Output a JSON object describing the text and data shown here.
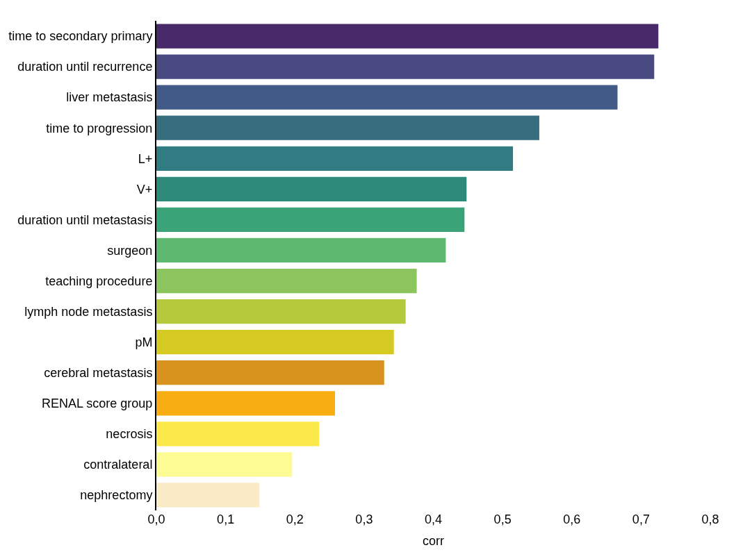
{
  "chart_data": {
    "type": "bar",
    "orientation": "horizontal",
    "xlabel": "corr",
    "categories": [
      "time to secondary primary",
      "duration until recurrence",
      "liver metastasis",
      "time to progression",
      "L+",
      "V+",
      "duration until metastasis",
      "surgeon",
      "teaching procedure",
      "lymph node metastasis",
      "pM",
      "cerebral metastasis",
      "RENAL score group",
      "necrosis",
      "contralateral",
      "nephrectomy"
    ],
    "values": [
      0.725,
      0.719,
      0.666,
      0.553,
      0.515,
      0.448,
      0.445,
      0.418,
      0.376,
      0.36,
      0.343,
      0.329,
      0.258,
      0.235,
      0.196,
      0.149
    ],
    "colors": [
      "#482a6b",
      "#4a4a83",
      "#415a88",
      "#366e80",
      "#317b82",
      "#2d8a78",
      "#3aa478",
      "#5fb86f",
      "#8cc45d",
      "#b4c93c",
      "#d4ca22",
      "#d8921e",
      "#f8ae12",
      "#fbe84a",
      "#fdfb94",
      "#faebc6"
    ],
    "xlim": [
      0,
      0.8
    ],
    "xticks": [
      {
        "value": 0,
        "label": "0,0"
      },
      {
        "value": 0.1,
        "label": "0,1"
      },
      {
        "value": 0.2,
        "label": "0,2"
      },
      {
        "value": 0.3,
        "label": "0,3"
      },
      {
        "value": 0.4,
        "label": "0,4"
      },
      {
        "value": 0.5,
        "label": "0,5"
      },
      {
        "value": 0.6,
        "label": "0,6"
      },
      {
        "value": 0.7,
        "label": "0,7"
      },
      {
        "value": 0.8,
        "label": "0,8"
      }
    ],
    "tick_labels": "xy"
  }
}
